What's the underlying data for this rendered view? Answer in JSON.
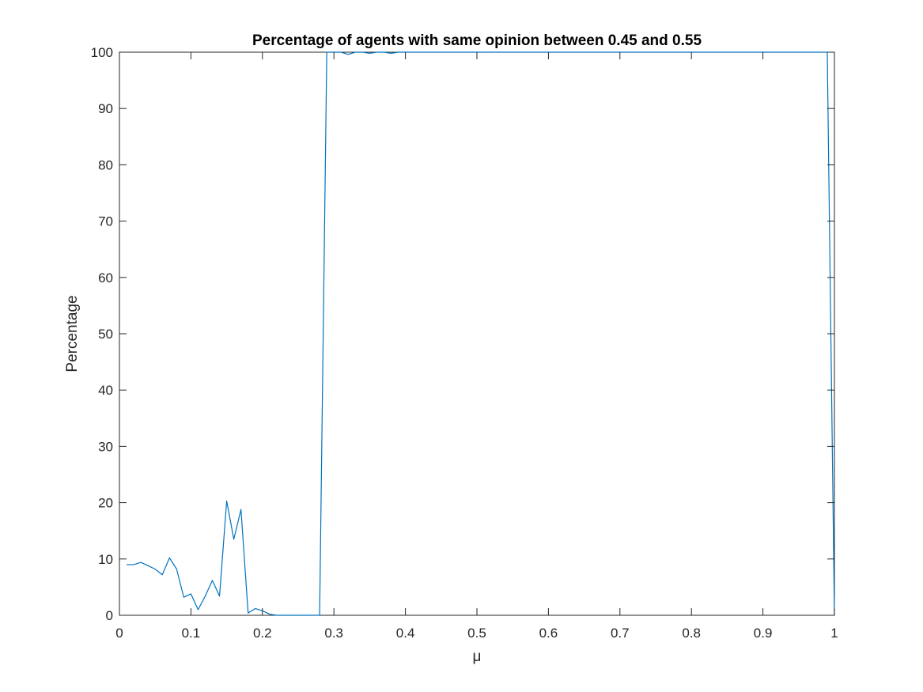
{
  "chart_data": {
    "type": "line",
    "title": "Percentage of agents with same opinion between 0.45 and 0.55",
    "xlabel": "μ",
    "ylabel": "Percentage",
    "xlim": [
      0,
      1
    ],
    "ylim": [
      0,
      100
    ],
    "xticks": [
      0,
      0.1,
      0.2,
      0.3,
      0.4,
      0.5,
      0.6,
      0.7,
      0.8,
      0.9,
      1
    ],
    "xtick_labels": [
      "0",
      "0.1",
      "0.2",
      "0.3",
      "0.4",
      "0.5",
      "0.6",
      "0.7",
      "0.8",
      "0.9",
      "1"
    ],
    "yticks": [
      0,
      10,
      20,
      30,
      40,
      50,
      60,
      70,
      80,
      90,
      100
    ],
    "ytick_labels": [
      "0",
      "10",
      "20",
      "30",
      "40",
      "50",
      "60",
      "70",
      "80",
      "90",
      "100"
    ],
    "grid": false,
    "box": true,
    "colors": {
      "line": "#0072BD",
      "axes": "#262626",
      "background": "#ffffff"
    },
    "series": [
      {
        "x": [
          0.01,
          0.02,
          0.03,
          0.04,
          0.05,
          0.06,
          0.07,
          0.08,
          0.09,
          0.1,
          0.11,
          0.12,
          0.13,
          0.14,
          0.15,
          0.16,
          0.17,
          0.18,
          0.19,
          0.2,
          0.21,
          0.22,
          0.23,
          0.24,
          0.25,
          0.26,
          0.27,
          0.28,
          0.29,
          0.3,
          0.31,
          0.32,
          0.33,
          0.34,
          0.35,
          0.36,
          0.37,
          0.38,
          0.39,
          0.4,
          0.41,
          0.42,
          0.43,
          0.44,
          0.45,
          0.46,
          0.47,
          0.48,
          0.49,
          0.5,
          0.51,
          0.52,
          0.53,
          0.54,
          0.55,
          0.56,
          0.57,
          0.58,
          0.59,
          0.6,
          0.61,
          0.62,
          0.63,
          0.64,
          0.65,
          0.66,
          0.67,
          0.68,
          0.69,
          0.7,
          0.71,
          0.72,
          0.73,
          0.74,
          0.75,
          0.76,
          0.77,
          0.78,
          0.79,
          0.8,
          0.81,
          0.82,
          0.83,
          0.84,
          0.85,
          0.86,
          0.87,
          0.88,
          0.89,
          0.9,
          0.91,
          0.92,
          0.93,
          0.94,
          0.95,
          0.96,
          0.97,
          0.98,
          0.99,
          1.0
        ],
        "y": [
          9.0,
          9.0,
          9.4,
          8.8,
          8.2,
          7.2,
          10.2,
          8.2,
          3.2,
          3.8,
          1.0,
          3.4,
          6.2,
          3.4,
          20.3,
          13.5,
          18.8,
          0.4,
          1.2,
          0.8,
          0.2,
          0.0,
          0.0,
          0.0,
          0.0,
          0.0,
          0.0,
          0.0,
          100.0,
          100.0,
          100.0,
          99.6,
          100.0,
          100.0,
          99.8,
          100.0,
          100.0,
          99.8,
          100.0,
          100.0,
          100.0,
          100.0,
          100.0,
          100.0,
          100.0,
          100.0,
          100.0,
          100.0,
          100.0,
          100.0,
          100.0,
          100.0,
          100.0,
          100.0,
          100.0,
          100.0,
          100.0,
          100.0,
          100.0,
          100.0,
          100.0,
          100.0,
          100.0,
          100.0,
          100.0,
          100.0,
          100.0,
          100.0,
          100.0,
          100.0,
          100.0,
          100.0,
          100.0,
          100.0,
          100.0,
          100.0,
          100.0,
          100.0,
          100.0,
          100.0,
          100.0,
          100.0,
          100.0,
          100.0,
          100.0,
          100.0,
          100.0,
          100.0,
          100.0,
          100.0,
          100.0,
          100.0,
          100.0,
          100.0,
          100.0,
          100.0,
          100.0,
          100.0,
          100.0,
          0.0
        ]
      }
    ]
  }
}
